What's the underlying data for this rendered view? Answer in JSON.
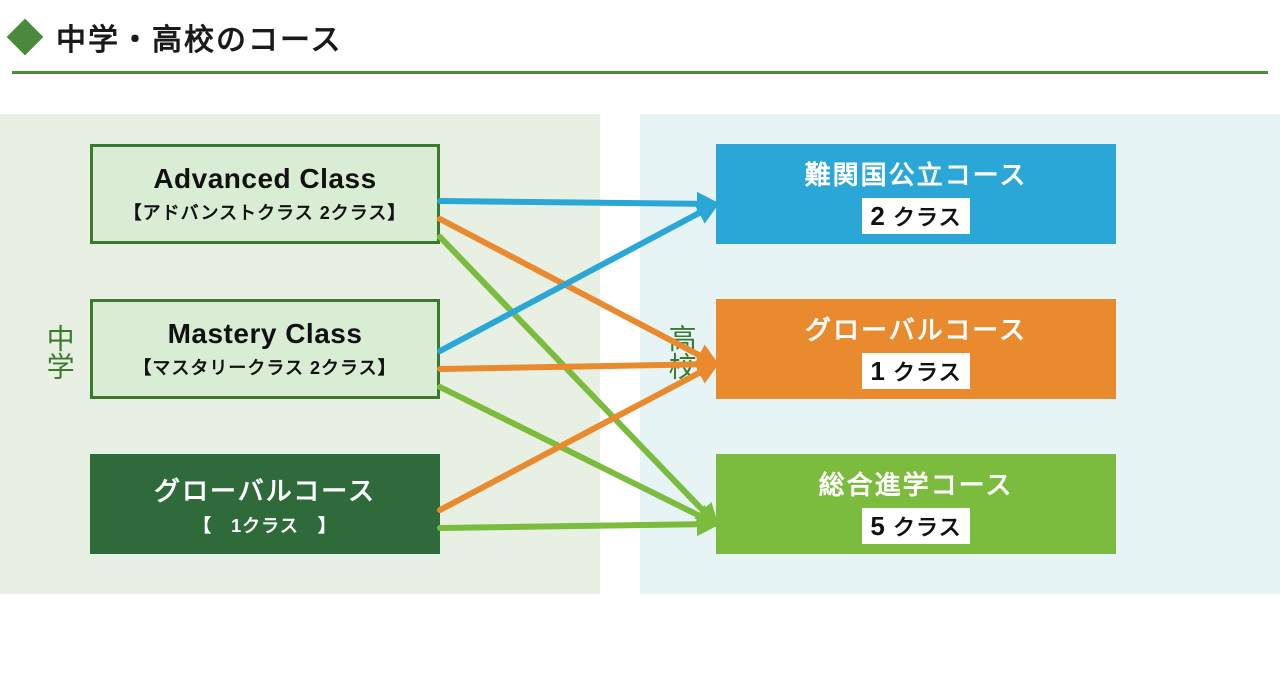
{
  "header": {
    "title": "中学・高校のコース",
    "diamond_color": "#4a8a3b",
    "rule_color": "#4a8a3b"
  },
  "layout": {
    "panel_left_bg": "#e7f0e3",
    "panel_right_bg": "#e7f4f6",
    "left_label": "中学",
    "right_label": "高校",
    "label_color": "#3b7a2e"
  },
  "middle_school": {
    "advanced": {
      "title": "Advanced Class",
      "sub": "【アドバンストクラス 2クラス】",
      "bg": "#d9ecd4",
      "border": "#3b7a2e",
      "text": "#111111"
    },
    "mastery": {
      "title": "Mastery Class",
      "sub": "【マスタリークラス 2クラス】",
      "bg": "#d9ecd4",
      "border": "#3b7a2e",
      "text": "#111111"
    },
    "global": {
      "title": "グローバルコース",
      "sub": "【　1クラス　】",
      "bg": "#2f6b3a",
      "border": "#2f6b3a",
      "text": "#ffffff"
    }
  },
  "high_school": {
    "nankan": {
      "title": "難関国公立コース",
      "count_num": "2",
      "count_unit": " クラス",
      "bg": "#2aa7d6",
      "border": "#2aa7d6"
    },
    "global": {
      "title": "グローバルコース",
      "count_num": "1",
      "count_unit": " クラス",
      "bg": "#e98a2e",
      "border": "#e98a2e"
    },
    "sougou": {
      "title": "総合進学コース",
      "count_num": "5",
      "count_unit": " クラス",
      "bg": "#7bbb3d",
      "border": "#7bbb3d"
    }
  },
  "arrows": {
    "stroke_width": 6,
    "colors": {
      "blue": "#2aa7d6",
      "orange": "#e98a2e",
      "green": "#7bbb3d"
    },
    "edges": [
      {
        "from": "advanced",
        "to": "nankan",
        "color": "blue"
      },
      {
        "from": "advanced",
        "to": "global",
        "color": "orange"
      },
      {
        "from": "advanced",
        "to": "sougou",
        "color": "green"
      },
      {
        "from": "mastery",
        "to": "nankan",
        "color": "blue"
      },
      {
        "from": "mastery",
        "to": "global",
        "color": "orange"
      },
      {
        "from": "mastery",
        "to": "sougou",
        "color": "green"
      },
      {
        "from": "msglobal",
        "to": "global",
        "color": "orange"
      },
      {
        "from": "msglobal",
        "to": "sougou",
        "color": "green"
      }
    ],
    "anchors_out": {
      "advanced": [
        440,
        145
      ],
      "mastery": [
        440,
        295
      ],
      "msglobal": [
        440,
        445
      ]
    },
    "anchors_in": {
      "nankan": [
        716,
        130
      ],
      "global": [
        716,
        290
      ],
      "sougou": [
        716,
        450
      ]
    }
  }
}
